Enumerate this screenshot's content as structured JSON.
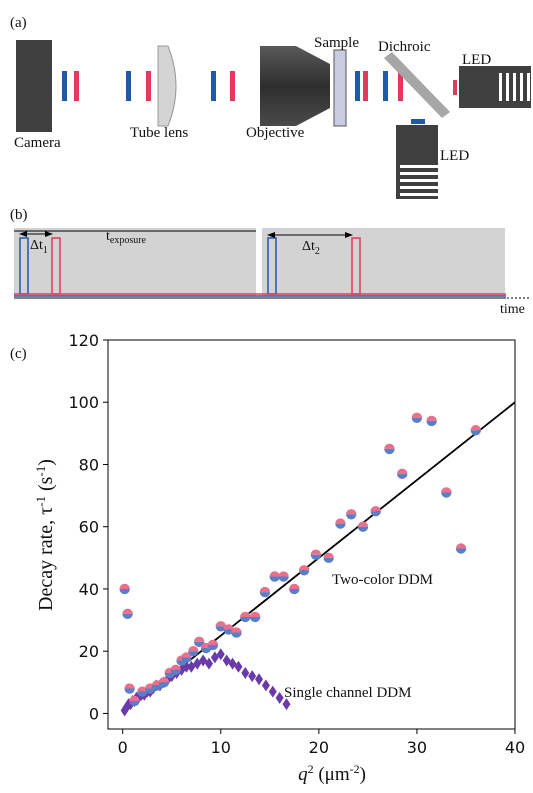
{
  "panel_a": {
    "label": "(a)",
    "camera": "Camera",
    "tube_lens": "Tube lens",
    "objective": "Objective",
    "sample": "Sample",
    "dichroic": "Dichroic",
    "led_right": "LED",
    "led_bottom": "LED",
    "colors": {
      "blue": "#1f5aa6",
      "red": "#e23a5e",
      "gray": "#3f3f3f",
      "lens": "#d4d4d4",
      "sample": "#c8cde3"
    }
  },
  "panel_b": {
    "label": "(b)",
    "dt1": "Δt",
    "dt1_sub": "1",
    "texp": "t",
    "texp_sub": "exposure",
    "dt2": "Δt",
    "dt2_sub": "2",
    "time": "time"
  },
  "panel_c": {
    "label": "(c)",
    "ylabel_main": "Decay rate, τ",
    "ylabel_sup": "-1",
    "ylabel_unit": " (s",
    "ylabel_unit_sup": "-1",
    "ylabel_close": ")",
    "xlabel_q": "q",
    "xlabel_sup": "2",
    "xlabel_unit": " (μm",
    "xlabel_unit_sup": "-2",
    "xlabel_close": ")",
    "annot_two": "Two-color DDM",
    "annot_single": "Single channel DDM"
  },
  "chart_data": {
    "type": "scatter",
    "xlim": [
      -1.5,
      40
    ],
    "ylim": [
      -5,
      120
    ],
    "xticks": [
      0,
      10,
      20,
      30,
      40
    ],
    "yticks": [
      0,
      20,
      40,
      60,
      80,
      100,
      120
    ],
    "series": [
      {
        "name": "Two-color DDM",
        "marker": "split-circle",
        "colors": [
          "#e8708c",
          "#5b7fc4"
        ],
        "x": [
          0.2,
          0.5,
          0.7,
          1.2,
          2.0,
          2.8,
          3.5,
          4.2,
          4.8,
          5.4,
          6.0,
          6.5,
          7.2,
          7.8,
          8.5,
          9.2,
          10.0,
          10.8,
          11.6,
          12.5,
          13.5,
          14.5,
          15.5,
          16.4,
          17.5,
          18.5,
          19.7,
          21.0,
          22.2,
          23.3,
          24.5,
          25.8,
          27.2,
          28.5,
          30.0,
          31.5,
          33.0,
          34.5,
          36.0
        ],
        "y": [
          40,
          32,
          8,
          4,
          7,
          8,
          9,
          10,
          13,
          14,
          17,
          18,
          20,
          23,
          21,
          22,
          28,
          27,
          26,
          31,
          31,
          39,
          44,
          44,
          40,
          46,
          51,
          50,
          61,
          64,
          60,
          65,
          85,
          77,
          95,
          94,
          71,
          53,
          91
        ]
      },
      {
        "name": "Single channel DDM",
        "marker": "diamond",
        "colors": [
          "#6a3aab"
        ],
        "x": [
          0.2,
          0.4,
          0.6,
          0.8,
          1.0,
          1.2,
          1.4,
          1.6,
          1.9,
          2.2,
          2.5,
          2.8,
          3.1,
          3.4,
          3.8,
          4.2,
          4.6,
          5.0,
          5.5,
          6.0,
          6.5,
          7.0,
          7.6,
          8.2,
          8.8,
          9.4,
          10.0,
          10.6,
          11.2,
          11.8,
          12.5,
          13.2,
          13.9,
          14.6,
          15.3,
          16.0,
          16.7
        ],
        "y": [
          1,
          2,
          3,
          3,
          4,
          4,
          5,
          5,
          6,
          6,
          7,
          7,
          8,
          9,
          9,
          10,
          11,
          12,
          13,
          14,
          15,
          15,
          16,
          17,
          16,
          18,
          19,
          17,
          16,
          15,
          13,
          12,
          11,
          9,
          7,
          5,
          3
        ]
      }
    ],
    "fit_line": {
      "x": [
        0,
        40
      ],
      "y": [
        0,
        100
      ],
      "color": "#000000"
    }
  }
}
